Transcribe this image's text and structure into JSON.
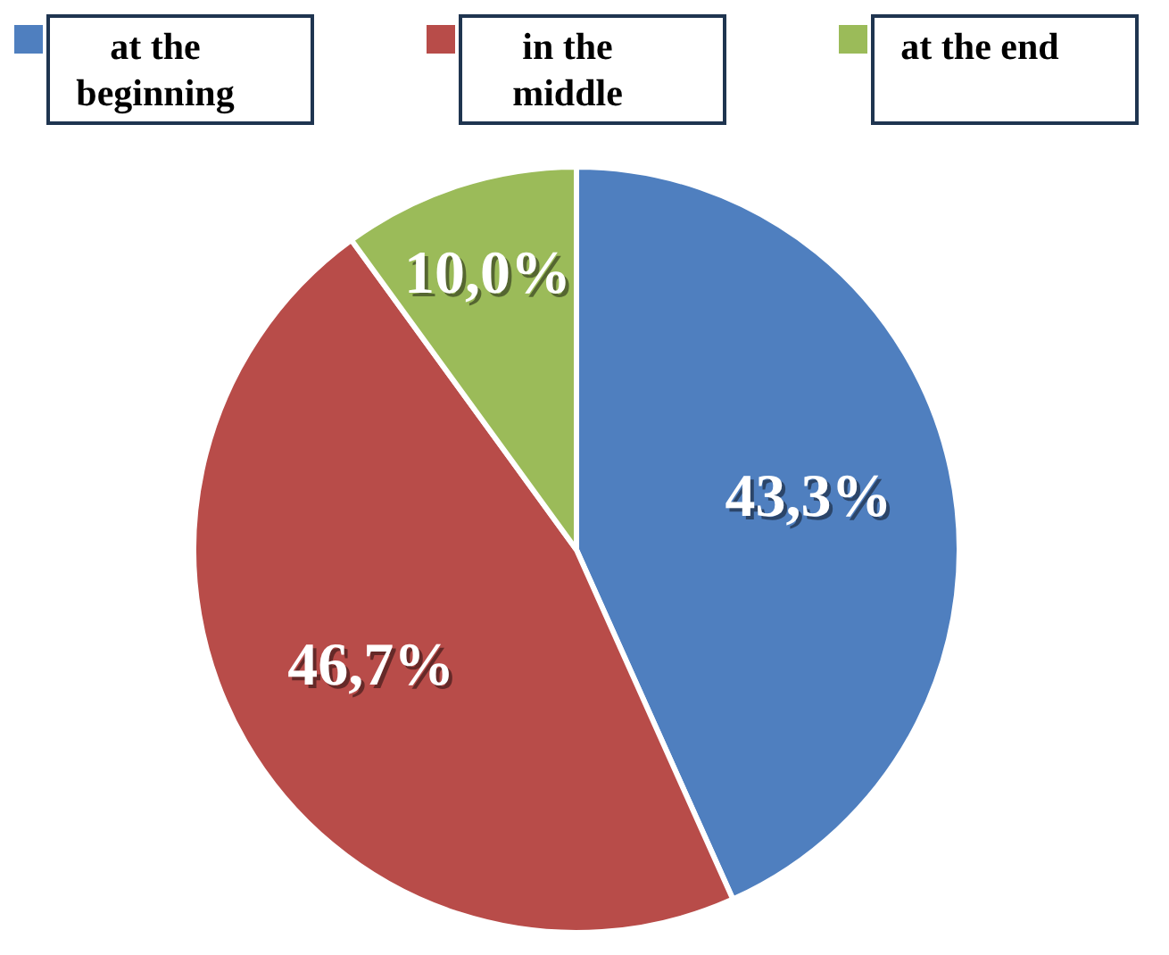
{
  "chart_data": {
    "type": "pie",
    "categories": [
      "at the beginning",
      "in the middle",
      "at the end"
    ],
    "values": [
      43.3,
      46.7,
      10.0
    ],
    "colors": [
      "#4f7fbf",
      "#b84c49",
      "#9bbb59"
    ],
    "value_labels": [
      "43,3%",
      "46,7%",
      "10,0%"
    ],
    "legend": "top"
  }
}
